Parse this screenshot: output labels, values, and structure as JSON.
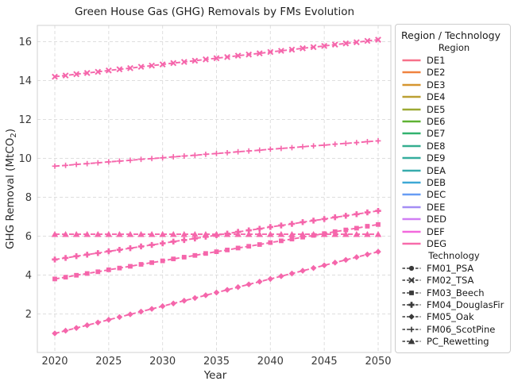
{
  "title": "Green House Gas (GHG) Removals by FMs Evolution",
  "axes": {
    "x_label": "Year",
    "y_label_pre": "GHG Removal (MtCO",
    "y_label_sub": "2",
    "y_label_post": ")",
    "x_ticks": [
      "2020",
      "2025",
      "2030",
      "2035",
      "2040",
      "2045",
      "2050"
    ],
    "y_ticks": [
      "2",
      "4",
      "6",
      "8",
      "10",
      "12",
      "14",
      "16"
    ]
  },
  "legend": {
    "title": "Region / Technology",
    "region_header": "Region",
    "technology_header": "Technology",
    "tech_line_color": "#3a3a3a",
    "regions": [
      {
        "label": "DE1",
        "color": "#f77189"
      },
      {
        "label": "DE2",
        "color": "#f0823f"
      },
      {
        "label": "DE3",
        "color": "#d6952f"
      },
      {
        "label": "DE4",
        "color": "#bba032"
      },
      {
        "label": "DE5",
        "color": "#9ca933"
      },
      {
        "label": "DE6",
        "color": "#5fb233"
      },
      {
        "label": "DE7",
        "color": "#31b26e"
      },
      {
        "label": "DE8",
        "color": "#34ae8f"
      },
      {
        "label": "DE9",
        "color": "#35ad9e"
      },
      {
        "label": "DEA",
        "color": "#37abac"
      },
      {
        "label": "DEB",
        "color": "#3da8d5"
      },
      {
        "label": "DEC",
        "color": "#679cf4"
      },
      {
        "label": "DEE",
        "color": "#a48df4"
      },
      {
        "label": "DED",
        "color": "#d07ef4"
      },
      {
        "label": "DEF",
        "color": "#f368dd"
      },
      {
        "label": "DEG",
        "color": "#f76bab"
      }
    ],
    "technologies": [
      {
        "label": "FM01_PSA",
        "marker": "circle"
      },
      {
        "label": "FM02_TSA",
        "marker": "x"
      },
      {
        "label": "FM03_Beech",
        "marker": "square"
      },
      {
        "label": "FM04_DouglasFir",
        "marker": "plus_bold"
      },
      {
        "label": "FM05_Oak",
        "marker": "diamond"
      },
      {
        "label": "FM06_ScotPine",
        "marker": "plus"
      },
      {
        "label": "PC_Rewetting",
        "marker": "triangle"
      }
    ]
  },
  "chart_data": {
    "type": "line",
    "title": "Green House Gas (GHG) Removals by FMs Evolution",
    "xlabel": "Year",
    "ylabel": "GHG Removal (MtCO2)",
    "xlim": [
      2018.6,
      2051.4
    ],
    "ylim": [
      0.0,
      16.8
    ],
    "grid": true,
    "legend_position": "right of axes",
    "line_style": "dashed with yearly markers",
    "line_color": "#f566ab",
    "x": [
      2020,
      2021,
      2022,
      2023,
      2024,
      2025,
      2026,
      2027,
      2028,
      2029,
      2030,
      2031,
      2032,
      2033,
      2034,
      2035,
      2036,
      2037,
      2038,
      2039,
      2040,
      2041,
      2042,
      2043,
      2044,
      2045,
      2046,
      2047,
      2048,
      2049,
      2050
    ],
    "series": [
      {
        "name": "FM02_TSA",
        "region": "DEG",
        "marker": "x",
        "values": [
          14.2,
          14.26,
          14.33,
          14.39,
          14.45,
          14.52,
          14.58,
          14.64,
          14.71,
          14.77,
          14.83,
          14.9,
          14.96,
          15.02,
          15.09,
          15.15,
          15.21,
          15.28,
          15.34,
          15.4,
          15.47,
          15.53,
          15.59,
          15.66,
          15.72,
          15.78,
          15.85,
          15.91,
          15.97,
          16.04,
          16.1
        ]
      },
      {
        "name": "FM06_ScotPine",
        "region": "DEG",
        "marker": "plus",
        "values": [
          9.6,
          9.64,
          9.69,
          9.73,
          9.77,
          9.82,
          9.86,
          9.9,
          9.95,
          9.99,
          10.03,
          10.08,
          10.12,
          10.16,
          10.21,
          10.25,
          10.29,
          10.34,
          10.38,
          10.42,
          10.47,
          10.51,
          10.55,
          10.6,
          10.64,
          10.68,
          10.73,
          10.77,
          10.81,
          10.86,
          10.9
        ]
      },
      {
        "name": "FM04_DouglasFir",
        "region": "DEG",
        "marker": "plus_bold",
        "values": [
          4.8,
          4.88,
          4.97,
          5.05,
          5.13,
          5.22,
          5.3,
          5.38,
          5.47,
          5.55,
          5.63,
          5.72,
          5.8,
          5.88,
          5.97,
          6.05,
          6.13,
          6.22,
          6.3,
          6.38,
          6.47,
          6.55,
          6.63,
          6.72,
          6.8,
          6.88,
          6.97,
          7.05,
          7.13,
          7.22,
          7.3
        ]
      },
      {
        "name": "FM03_Beech",
        "region": "DEG",
        "marker": "square",
        "values": [
          3.8,
          3.89,
          3.99,
          4.08,
          4.17,
          4.27,
          4.36,
          4.45,
          4.55,
          4.64,
          4.73,
          4.83,
          4.92,
          5.01,
          5.11,
          5.2,
          5.29,
          5.39,
          5.48,
          5.57,
          5.67,
          5.76,
          5.85,
          5.95,
          6.04,
          6.13,
          6.23,
          6.32,
          6.41,
          6.51,
          6.6
        ]
      },
      {
        "name": "FM05_Oak",
        "region": "DEG",
        "marker": "diamond",
        "values": [
          1.0,
          1.14,
          1.28,
          1.42,
          1.56,
          1.7,
          1.84,
          1.98,
          2.12,
          2.26,
          2.4,
          2.54,
          2.68,
          2.82,
          2.96,
          3.1,
          3.24,
          3.38,
          3.52,
          3.66,
          3.8,
          3.94,
          4.08,
          4.22,
          4.36,
          4.5,
          4.64,
          4.78,
          4.92,
          5.06,
          5.2
        ]
      },
      {
        "name": "PC_Rewetting",
        "region": "DEG",
        "marker": "triangle",
        "values": [
          6.1,
          6.1,
          6.1,
          6.1,
          6.1,
          6.1,
          6.1,
          6.1,
          6.1,
          6.1,
          6.1,
          6.1,
          6.1,
          6.1,
          6.1,
          6.1,
          6.1,
          6.1,
          6.1,
          6.1,
          6.1,
          6.1,
          6.1,
          6.1,
          6.1,
          6.1,
          6.1,
          6.1,
          6.1,
          6.1,
          6.1
        ]
      }
    ]
  }
}
